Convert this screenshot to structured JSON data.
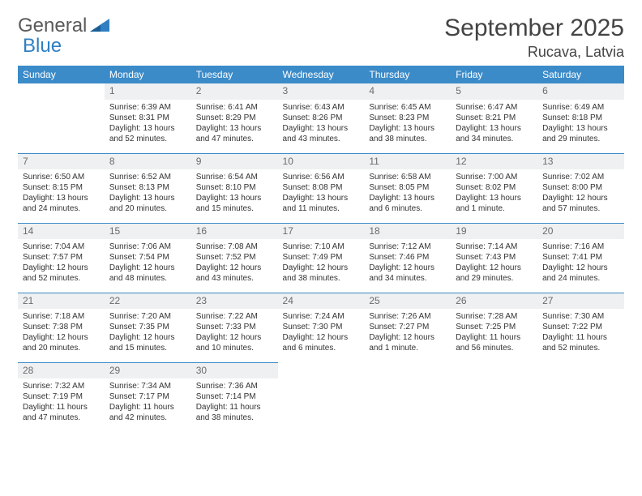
{
  "brand": {
    "word1": "General",
    "word2": "Blue"
  },
  "title": "September 2025",
  "location": "Rucava, Latvia",
  "weekdays": [
    "Sunday",
    "Monday",
    "Tuesday",
    "Wednesday",
    "Thursday",
    "Friday",
    "Saturday"
  ],
  "colors": {
    "header_bg": "#3b8bc9",
    "header_text": "#ffffff",
    "daynum_bg": "#eef0f1",
    "border": "#3b8bc9",
    "logo_blue": "#2f7fc2"
  },
  "weeks": [
    [
      null,
      {
        "n": "1",
        "sunrise": "Sunrise: 6:39 AM",
        "sunset": "Sunset: 8:31 PM",
        "day": "Daylight: 13 hours and 52 minutes."
      },
      {
        "n": "2",
        "sunrise": "Sunrise: 6:41 AM",
        "sunset": "Sunset: 8:29 PM",
        "day": "Daylight: 13 hours and 47 minutes."
      },
      {
        "n": "3",
        "sunrise": "Sunrise: 6:43 AM",
        "sunset": "Sunset: 8:26 PM",
        "day": "Daylight: 13 hours and 43 minutes."
      },
      {
        "n": "4",
        "sunrise": "Sunrise: 6:45 AM",
        "sunset": "Sunset: 8:23 PM",
        "day": "Daylight: 13 hours and 38 minutes."
      },
      {
        "n": "5",
        "sunrise": "Sunrise: 6:47 AM",
        "sunset": "Sunset: 8:21 PM",
        "day": "Daylight: 13 hours and 34 minutes."
      },
      {
        "n": "6",
        "sunrise": "Sunrise: 6:49 AM",
        "sunset": "Sunset: 8:18 PM",
        "day": "Daylight: 13 hours and 29 minutes."
      }
    ],
    [
      {
        "n": "7",
        "sunrise": "Sunrise: 6:50 AM",
        "sunset": "Sunset: 8:15 PM",
        "day": "Daylight: 13 hours and 24 minutes."
      },
      {
        "n": "8",
        "sunrise": "Sunrise: 6:52 AM",
        "sunset": "Sunset: 8:13 PM",
        "day": "Daylight: 13 hours and 20 minutes."
      },
      {
        "n": "9",
        "sunrise": "Sunrise: 6:54 AM",
        "sunset": "Sunset: 8:10 PM",
        "day": "Daylight: 13 hours and 15 minutes."
      },
      {
        "n": "10",
        "sunrise": "Sunrise: 6:56 AM",
        "sunset": "Sunset: 8:08 PM",
        "day": "Daylight: 13 hours and 11 minutes."
      },
      {
        "n": "11",
        "sunrise": "Sunrise: 6:58 AM",
        "sunset": "Sunset: 8:05 PM",
        "day": "Daylight: 13 hours and 6 minutes."
      },
      {
        "n": "12",
        "sunrise": "Sunrise: 7:00 AM",
        "sunset": "Sunset: 8:02 PM",
        "day": "Daylight: 13 hours and 1 minute."
      },
      {
        "n": "13",
        "sunrise": "Sunrise: 7:02 AM",
        "sunset": "Sunset: 8:00 PM",
        "day": "Daylight: 12 hours and 57 minutes."
      }
    ],
    [
      {
        "n": "14",
        "sunrise": "Sunrise: 7:04 AM",
        "sunset": "Sunset: 7:57 PM",
        "day": "Daylight: 12 hours and 52 minutes."
      },
      {
        "n": "15",
        "sunrise": "Sunrise: 7:06 AM",
        "sunset": "Sunset: 7:54 PM",
        "day": "Daylight: 12 hours and 48 minutes."
      },
      {
        "n": "16",
        "sunrise": "Sunrise: 7:08 AM",
        "sunset": "Sunset: 7:52 PM",
        "day": "Daylight: 12 hours and 43 minutes."
      },
      {
        "n": "17",
        "sunrise": "Sunrise: 7:10 AM",
        "sunset": "Sunset: 7:49 PM",
        "day": "Daylight: 12 hours and 38 minutes."
      },
      {
        "n": "18",
        "sunrise": "Sunrise: 7:12 AM",
        "sunset": "Sunset: 7:46 PM",
        "day": "Daylight: 12 hours and 34 minutes."
      },
      {
        "n": "19",
        "sunrise": "Sunrise: 7:14 AM",
        "sunset": "Sunset: 7:43 PM",
        "day": "Daylight: 12 hours and 29 minutes."
      },
      {
        "n": "20",
        "sunrise": "Sunrise: 7:16 AM",
        "sunset": "Sunset: 7:41 PM",
        "day": "Daylight: 12 hours and 24 minutes."
      }
    ],
    [
      {
        "n": "21",
        "sunrise": "Sunrise: 7:18 AM",
        "sunset": "Sunset: 7:38 PM",
        "day": "Daylight: 12 hours and 20 minutes."
      },
      {
        "n": "22",
        "sunrise": "Sunrise: 7:20 AM",
        "sunset": "Sunset: 7:35 PM",
        "day": "Daylight: 12 hours and 15 minutes."
      },
      {
        "n": "23",
        "sunrise": "Sunrise: 7:22 AM",
        "sunset": "Sunset: 7:33 PM",
        "day": "Daylight: 12 hours and 10 minutes."
      },
      {
        "n": "24",
        "sunrise": "Sunrise: 7:24 AM",
        "sunset": "Sunset: 7:30 PM",
        "day": "Daylight: 12 hours and 6 minutes."
      },
      {
        "n": "25",
        "sunrise": "Sunrise: 7:26 AM",
        "sunset": "Sunset: 7:27 PM",
        "day": "Daylight: 12 hours and 1 minute."
      },
      {
        "n": "26",
        "sunrise": "Sunrise: 7:28 AM",
        "sunset": "Sunset: 7:25 PM",
        "day": "Daylight: 11 hours and 56 minutes."
      },
      {
        "n": "27",
        "sunrise": "Sunrise: 7:30 AM",
        "sunset": "Sunset: 7:22 PM",
        "day": "Daylight: 11 hours and 52 minutes."
      }
    ],
    [
      {
        "n": "28",
        "sunrise": "Sunrise: 7:32 AM",
        "sunset": "Sunset: 7:19 PM",
        "day": "Daylight: 11 hours and 47 minutes."
      },
      {
        "n": "29",
        "sunrise": "Sunrise: 7:34 AM",
        "sunset": "Sunset: 7:17 PM",
        "day": "Daylight: 11 hours and 42 minutes."
      },
      {
        "n": "30",
        "sunrise": "Sunrise: 7:36 AM",
        "sunset": "Sunset: 7:14 PM",
        "day": "Daylight: 11 hours and 38 minutes."
      },
      null,
      null,
      null,
      null
    ]
  ]
}
